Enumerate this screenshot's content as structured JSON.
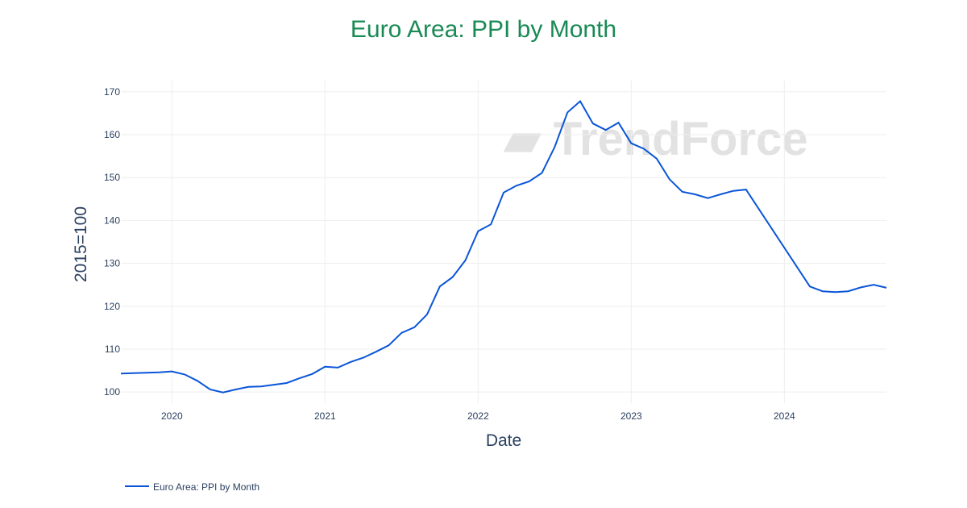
{
  "chart_data": {
    "type": "line",
    "title": "Euro Area: PPI by Month",
    "xlabel": "Date",
    "ylabel": "2015=100",
    "xlim": [
      "2019-09",
      "2024-09"
    ],
    "ylim": [
      97.4,
      172.6
    ],
    "grid": true,
    "legend_placement": "bottom-left",
    "x_ticks": [
      "2020",
      "2021",
      "2022",
      "2023",
      "2024"
    ],
    "y_ticks": [
      100,
      110,
      120,
      130,
      140,
      150,
      160,
      170
    ],
    "watermark": "TrendForce",
    "series": [
      {
        "name": "Euro Area: PPI by Month",
        "color": "#0a55d8",
        "x": [
          "2019-09",
          "2019-12",
          "2020-01",
          "2020-02",
          "2020-03",
          "2020-04",
          "2020-05",
          "2020-06",
          "2020-07",
          "2020-08",
          "2020-09",
          "2020-10",
          "2020-11",
          "2020-12",
          "2021-01",
          "2021-02",
          "2021-03",
          "2021-04",
          "2021-05",
          "2021-06",
          "2021-07",
          "2021-08",
          "2021-09",
          "2021-10",
          "2021-11",
          "2021-12",
          "2022-01",
          "2022-02",
          "2022-03",
          "2022-04",
          "2022-05",
          "2022-06",
          "2022-07",
          "2022-08",
          "2022-09",
          "2022-10",
          "2022-11",
          "2022-12",
          "2023-01",
          "2023-02",
          "2023-03",
          "2023-04",
          "2023-05",
          "2023-06",
          "2023-07",
          "2023-08",
          "2023-09",
          "2023-10",
          "2024-03",
          "2024-04",
          "2024-05",
          "2024-06",
          "2024-07",
          "2024-08",
          "2024-09"
        ],
        "y": [
          104.3,
          104.6,
          104.8,
          104.1,
          102.6,
          100.6,
          99.9,
          100.6,
          101.2,
          101.3,
          101.7,
          102.1,
          103.2,
          104.2,
          105.9,
          105.7,
          107.0,
          108.0,
          109.4,
          110.9,
          113.8,
          115.1,
          118.1,
          124.6,
          126.8,
          130.7,
          137.5,
          139.1,
          146.5,
          148.1,
          149.1,
          151.1,
          157.1,
          165.2,
          167.8,
          162.6,
          161.1,
          162.8,
          158.0,
          156.7,
          154.4,
          149.6,
          146.7,
          146.1,
          145.2,
          146.1,
          146.9,
          147.2,
          124.6,
          123.5,
          123.3,
          123.5,
          124.4,
          125.0,
          124.3
        ]
      }
    ]
  }
}
